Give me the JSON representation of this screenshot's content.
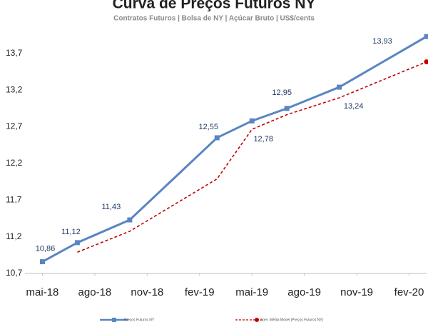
{
  "chart_data": {
    "type": "line",
    "title": "Curva de Preços Futuros NY",
    "subtitle": "Contratos Futuros | Bolsa de NY | Açúcar Bruto | US$/cents",
    "x": [
      "2018-05",
      "2018-07",
      "2018-10",
      "2019-03",
      "2019-05",
      "2019-07",
      "2019-10",
      "2020-03"
    ],
    "xlim": [
      "2018-04",
      "2020-03"
    ],
    "xticks": [
      {
        "value": "2018-05",
        "label": "mai-18"
      },
      {
        "value": "2018-08",
        "label": "ago-18"
      },
      {
        "value": "2018-11",
        "label": "nov-18"
      },
      {
        "value": "2019-02",
        "label": "fev-19"
      },
      {
        "value": "2019-05",
        "label": "mai-19"
      },
      {
        "value": "2019-08",
        "label": "ago-19"
      },
      {
        "value": "2019-11",
        "label": "nov-19"
      },
      {
        "value": "2020-02",
        "label": "fev-20"
      }
    ],
    "ylim": [
      10.7,
      14.0
    ],
    "yticks": [
      {
        "value": 10.7,
        "label": "10,7"
      },
      {
        "value": 11.2,
        "label": "11,2"
      },
      {
        "value": 11.7,
        "label": "11,7"
      },
      {
        "value": 12.2,
        "label": "12,2"
      },
      {
        "value": 12.7,
        "label": "12,7"
      },
      {
        "value": 13.2,
        "label": "13,2"
      },
      {
        "value": 13.7,
        "label": "13,7"
      }
    ],
    "grid": false,
    "legend": "bottom",
    "series": [
      {
        "name": "Preços Futuros NY",
        "color": "#5a84c2",
        "style": "solid",
        "marker": "square",
        "values": [
          10.86,
          11.12,
          11.43,
          12.55,
          12.78,
          12.95,
          13.24,
          13.93
        ],
        "value_labels": [
          "10,86",
          "11,12",
          "11,43",
          "12,55",
          "12,78",
          "12,95",
          "13,24",
          "13,93"
        ]
      },
      {
        "name": "2 per. Média Móvel (Preços Futuros NY)",
        "color": "#c00000",
        "style": "dashed",
        "marker": "circle",
        "values": [
          null,
          10.99,
          11.275,
          11.99,
          12.665,
          12.865,
          13.095,
          13.585
        ]
      }
    ]
  }
}
